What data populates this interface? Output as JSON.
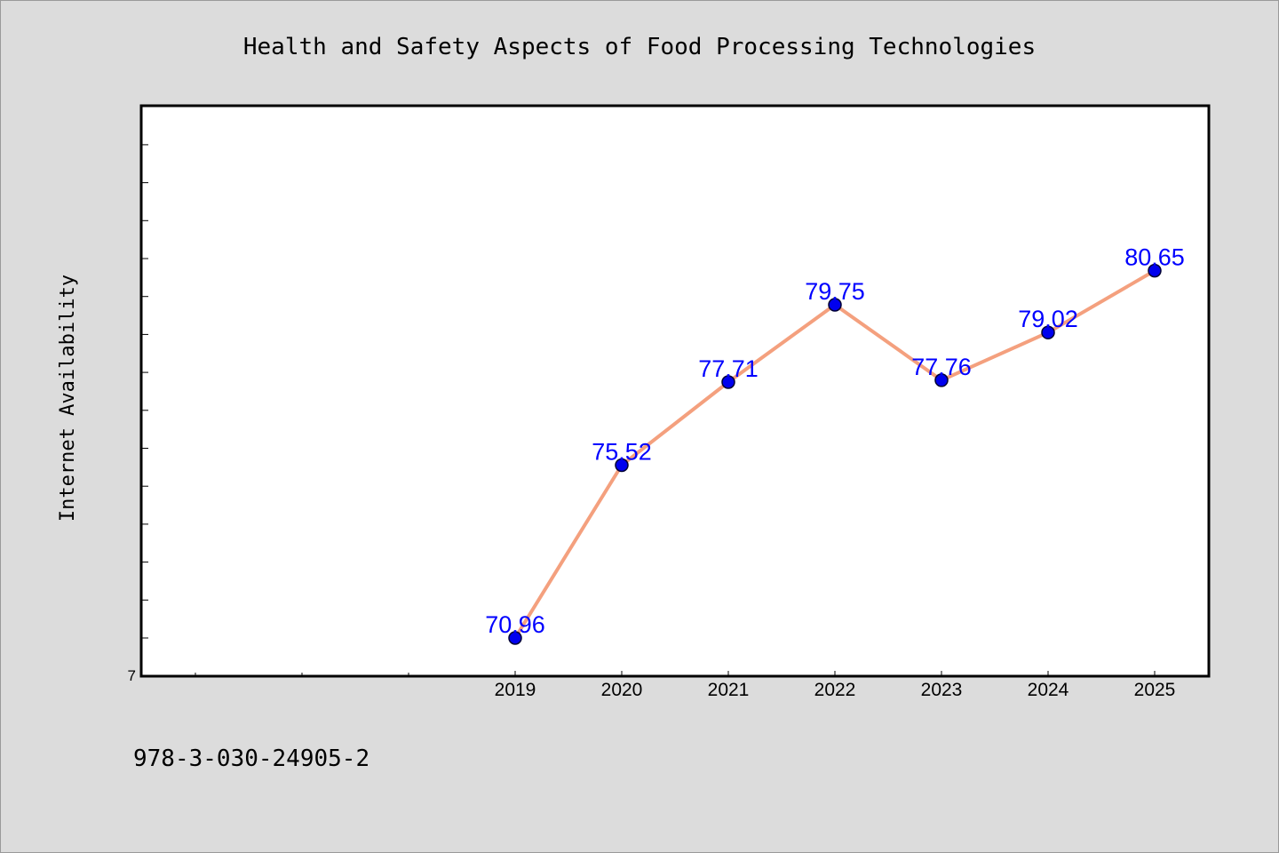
{
  "chart_data": {
    "type": "line",
    "title": "Health and Safety Aspects of Food Processing Technologies",
    "xlabel": "",
    "ylabel": "Internet Availability",
    "categories": [
      "2019",
      "2020",
      "2021",
      "2022",
      "2023",
      "2024",
      "2025"
    ],
    "series": [
      {
        "values": [
          70.96,
          75.52,
          77.71,
          79.75,
          77.76,
          79.02,
          80.65
        ],
        "labels": [
          "70.96",
          "75.52",
          "77.71",
          "79.75",
          "77.76",
          "79.02",
          "80.65"
        ]
      }
    ],
    "y_tick_labels": [
      "7"
    ],
    "grid": false,
    "legend": "none",
    "colors": {
      "line": "#f4a07e",
      "marker": "#0000ee",
      "marker_edge": "#000033",
      "data_label": "#0000ff",
      "plot_background": "#ffffff",
      "figure_background": "#dcdcdc"
    }
  },
  "footnote": "978-3-030-24905-2"
}
